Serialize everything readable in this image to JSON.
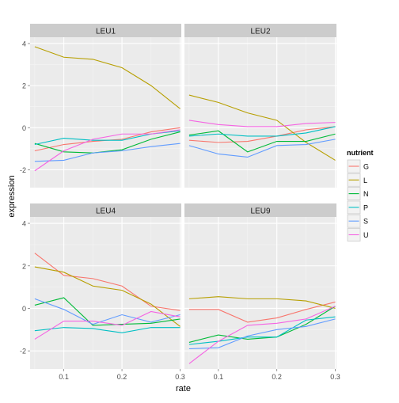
{
  "chart_data": {
    "type": "line",
    "facets": [
      "LEU1",
      "LEU2",
      "LEU4",
      "LEU9"
    ],
    "x": [
      0.05,
      0.1,
      0.15,
      0.2,
      0.25,
      0.3
    ],
    "xlabel": "rate",
    "ylabel": "expression",
    "x_ticks": [
      "0.1",
      "0.2",
      "0.3"
    ],
    "x_tick_values": [
      0.1,
      0.2,
      0.3
    ],
    "y_ticks": [
      "-2",
      "0",
      "2",
      "4"
    ],
    "y_tick_values": [
      -2,
      0,
      2,
      4
    ],
    "xlim": [
      0.042,
      0.302
    ],
    "ylim": [
      -2.85,
      4.3
    ],
    "grid": true,
    "legend": {
      "title": "nutrient",
      "placement": "right",
      "entries": [
        "G",
        "L",
        "N",
        "P",
        "S",
        "U"
      ]
    },
    "colors": {
      "G": "#F8766D",
      "L": "#B79F00",
      "N": "#00BA38",
      "P": "#00BFC4",
      "S": "#619CFF",
      "U": "#F564E3"
    },
    "panels": [
      {
        "facet": "LEU1",
        "series": [
          {
            "name": "G",
            "values": [
              -1.1,
              -0.8,
              -0.65,
              -0.55,
              -0.2,
              0.0
            ]
          },
          {
            "name": "L",
            "values": [
              3.85,
              3.35,
              3.25,
              2.85,
              2.0,
              0.9
            ]
          },
          {
            "name": "N",
            "values": [
              -0.75,
              -1.15,
              -1.2,
              -1.05,
              -0.55,
              -0.2
            ]
          },
          {
            "name": "P",
            "values": [
              -0.8,
              -0.5,
              -0.6,
              -0.6,
              -0.3,
              -0.15
            ]
          },
          {
            "name": "S",
            "values": [
              -1.6,
              -1.55,
              -1.2,
              -1.1,
              -0.9,
              -0.75
            ]
          },
          {
            "name": "U",
            "values": [
              -2.05,
              -1.1,
              -0.55,
              -0.3,
              -0.3,
              -0.1
            ]
          }
        ]
      },
      {
        "facet": "LEU2",
        "series": [
          {
            "name": "G",
            "values": [
              -0.6,
              -0.7,
              -0.65,
              -0.4,
              -0.1,
              0.05
            ]
          },
          {
            "name": "L",
            "values": [
              1.55,
              1.2,
              0.7,
              0.35,
              -0.7,
              -1.55
            ]
          },
          {
            "name": "N",
            "values": [
              -0.35,
              -0.15,
              -1.15,
              -0.65,
              -0.65,
              -0.3
            ]
          },
          {
            "name": "P",
            "values": [
              -0.4,
              -0.3,
              -0.4,
              -0.4,
              -0.25,
              0.05
            ]
          },
          {
            "name": "S",
            "values": [
              -0.85,
              -1.25,
              -1.4,
              -0.85,
              -0.8,
              -0.55
            ]
          },
          {
            "name": "U",
            "values": [
              0.35,
              0.15,
              0.05,
              0.05,
              0.2,
              0.25
            ]
          }
        ]
      },
      {
        "facet": "LEU4",
        "series": [
          {
            "name": "G",
            "values": [
              2.6,
              1.55,
              1.4,
              1.05,
              0.1,
              -0.1
            ]
          },
          {
            "name": "L",
            "values": [
              1.95,
              1.7,
              1.05,
              0.85,
              0.2,
              -0.85
            ]
          },
          {
            "name": "N",
            "values": [
              0.15,
              0.5,
              -0.8,
              -0.75,
              -0.7,
              -0.5
            ]
          },
          {
            "name": "P",
            "values": [
              -1.05,
              -0.9,
              -0.95,
              -1.15,
              -0.9,
              -0.9
            ]
          },
          {
            "name": "S",
            "values": [
              0.45,
              -0.05,
              -0.75,
              -0.3,
              -0.65,
              -0.3
            ]
          },
          {
            "name": "U",
            "values": [
              -1.45,
              -0.6,
              -0.6,
              -0.8,
              -0.15,
              -0.4
            ]
          }
        ]
      },
      {
        "facet": "LEU9",
        "series": [
          {
            "name": "G",
            "values": [
              -0.05,
              -0.05,
              -0.65,
              -0.45,
              -0.05,
              0.3
            ]
          },
          {
            "name": "L",
            "values": [
              0.45,
              0.55,
              0.45,
              0.45,
              0.35,
              0.0
            ]
          },
          {
            "name": "N",
            "values": [
              -1.6,
              -1.25,
              -1.45,
              -1.35,
              -0.75,
              0.1
            ]
          },
          {
            "name": "P",
            "values": [
              -1.7,
              -1.55,
              -1.35,
              -1.35,
              -0.55,
              -0.4
            ]
          },
          {
            "name": "S",
            "values": [
              -1.9,
              -1.85,
              -1.3,
              -1.0,
              -0.85,
              -0.5
            ]
          },
          {
            "name": "U",
            "values": [
              -2.6,
              -1.55,
              -0.8,
              -0.7,
              -0.5,
              0.1
            ]
          }
        ]
      }
    ]
  }
}
